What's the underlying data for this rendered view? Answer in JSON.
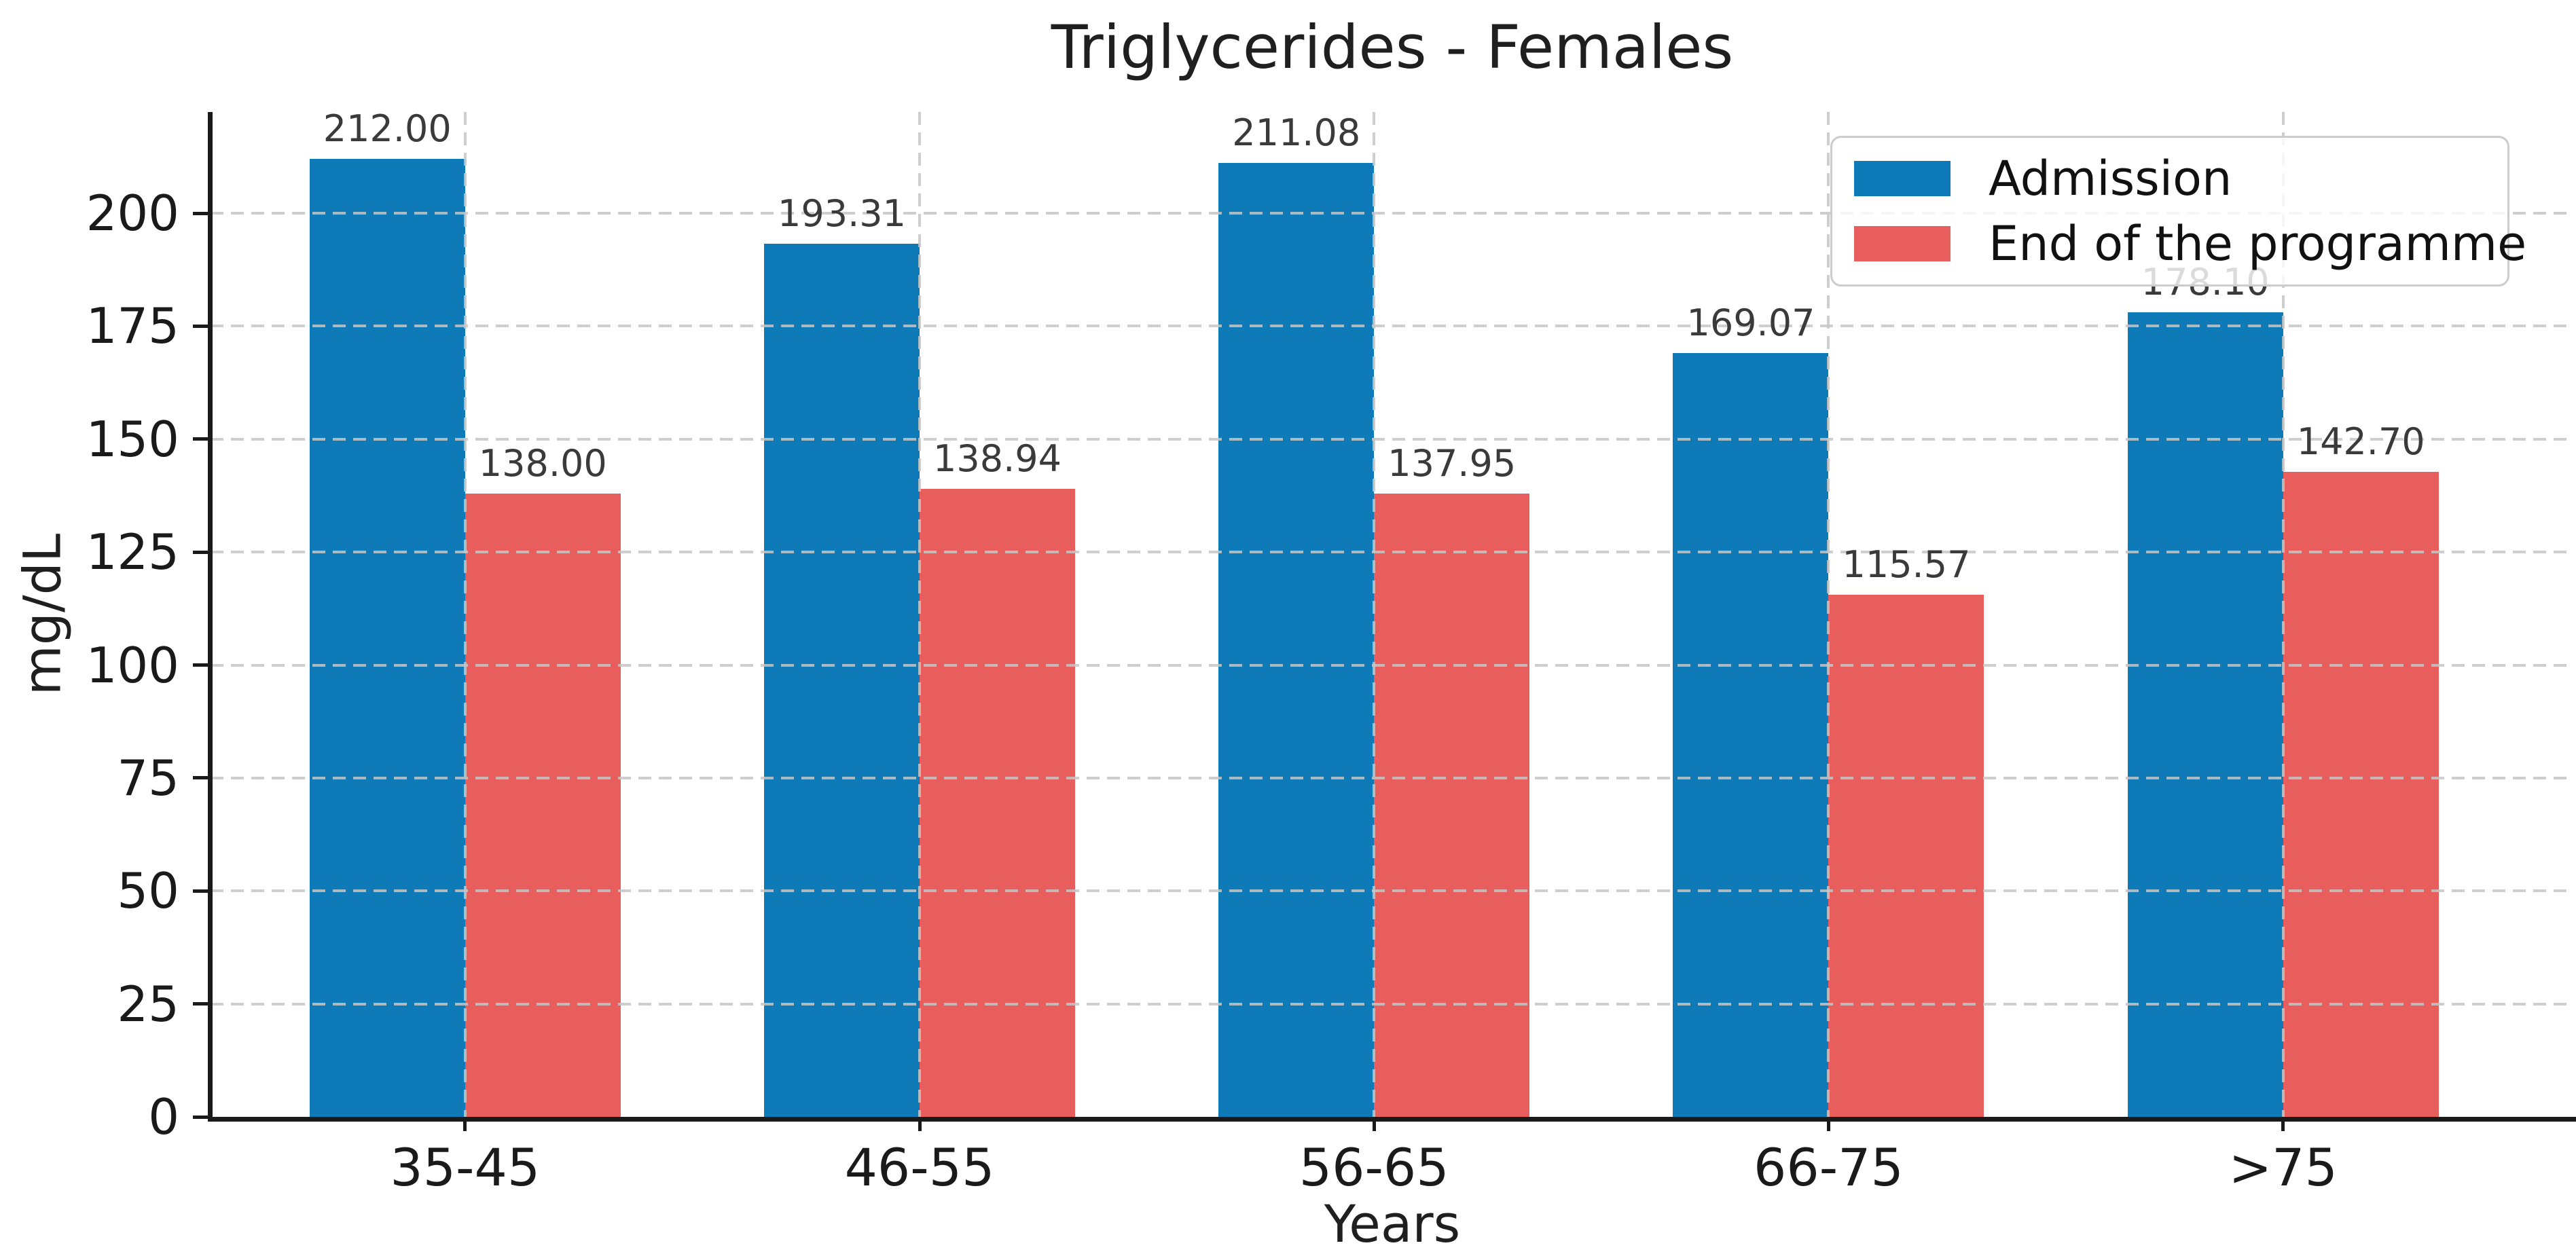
{
  "title": "Triglycerides - Females",
  "chart_data": {
    "type": "bar",
    "title": "Triglycerides - Females",
    "xlabel": "Years",
    "ylabel": "mg/dL",
    "categories": [
      "35-45",
      "46-55",
      "56-65",
      "66-75",
      ">75"
    ],
    "series": [
      {
        "name": "Admission",
        "color": "#0e7bb8",
        "values": [
          212.0,
          193.31,
          211.08,
          169.07,
          178.1
        ],
        "value_labels": [
          "212.00",
          "193.31",
          "211.08",
          "169.07",
          "178.10"
        ]
      },
      {
        "name": "End of the programme",
        "color": "#e85e5d",
        "values": [
          138.0,
          138.94,
          137.95,
          115.57,
          142.7
        ],
        "value_labels": [
          "138.00",
          "138.94",
          "137.95",
          "115.57",
          "142.70"
        ]
      }
    ],
    "yticks": [
      0,
      25,
      50,
      75,
      100,
      125,
      150,
      175,
      200
    ],
    "ylim": [
      0,
      222.4
    ],
    "grid": "dashed, horizontal at yticks and vertical at category centers, drawn over bars",
    "legend_position": "upper right",
    "colors": {
      "grid": "#c6c6c6",
      "axis": "#1a1a1a",
      "value_label": "#3a3a3a",
      "legend_border": "#cccccc"
    }
  }
}
